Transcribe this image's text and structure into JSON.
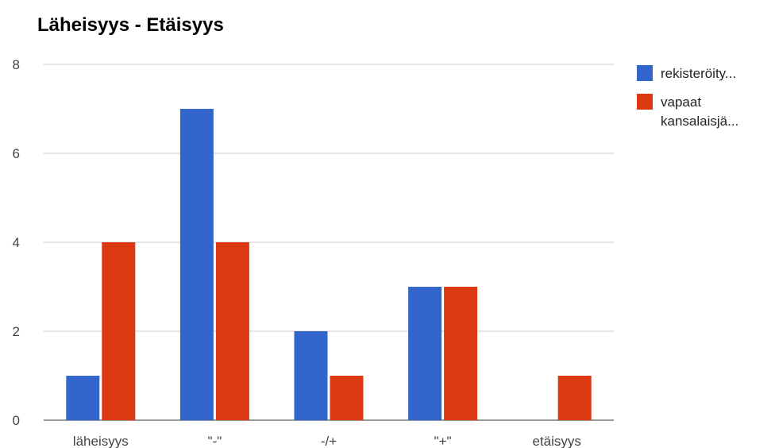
{
  "chart_data": {
    "type": "bar",
    "title": "Läheisyys - Etäisyys",
    "categories": [
      "läheisyys",
      "\"-\"",
      "-/+",
      "\"+\"",
      "etäisyys"
    ],
    "series": [
      {
        "name": "rekisteröity...",
        "color": "#3366cc",
        "values": [
          1,
          7,
          2,
          3,
          0
        ]
      },
      {
        "name": "vapaat kansalaisjä...",
        "name_lines": [
          "vapaat",
          "kansalaisjä..."
        ],
        "color": "#dc3912",
        "values": [
          4,
          4,
          1,
          3,
          1
        ]
      }
    ],
    "ylim": [
      0,
      8
    ],
    "yticks": [
      0,
      2,
      4,
      6,
      8
    ],
    "grid": true,
    "legend": "right",
    "xlabel": "",
    "ylabel": ""
  }
}
